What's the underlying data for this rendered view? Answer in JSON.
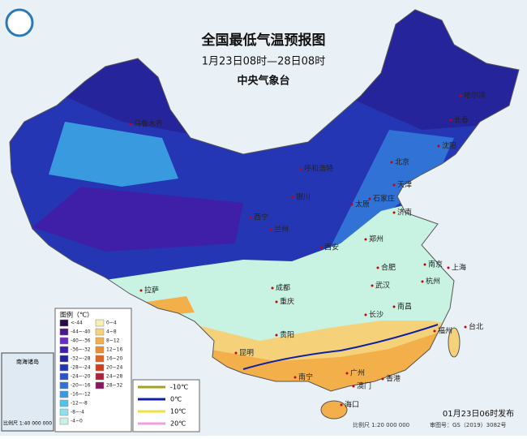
{
  "header": {
    "title": "全国最低气温预报图",
    "subtitle": "1月23日08时—28日08时",
    "issuer": "中央气象台"
  },
  "cities": [
    "哈尔滨",
    "长春",
    "沈阳",
    "乌鲁木齐",
    "呼和浩特",
    "北京",
    "天津",
    "石家庄",
    "太原",
    "银川",
    "西宁",
    "兰州",
    "济南",
    "郑州",
    "西安",
    "合肥",
    "南京",
    "上海",
    "成都",
    "武汉",
    "杭州",
    "拉萨",
    "重庆",
    "长沙",
    "南昌",
    "台北",
    "福州",
    "贵阳",
    "昆明",
    "南宁",
    "广州",
    "澳门",
    "香港",
    "海口"
  ],
  "legend": {
    "title": "图例（℃）",
    "items": [
      {
        "label": "<-44",
        "color": "#2a0a4a"
      },
      {
        "label": "-44~-40",
        "color": "#4b1a86"
      },
      {
        "label": "-40~-36",
        "color": "#6a2fc0"
      },
      {
        "label": "-36~-32",
        "color": "#3f1fa8"
      },
      {
        "label": "-32~-28",
        "color": "#26249a"
      },
      {
        "label": "-28~-24",
        "color": "#2436b4"
      },
      {
        "label": "-24~-20",
        "color": "#2c52c8"
      },
      {
        "label": "-20~-16",
        "color": "#3172d6"
      },
      {
        "label": "-16~-12",
        "color": "#3a9ae0"
      },
      {
        "label": "-12~-8",
        "color": "#52c2ea"
      },
      {
        "label": "-8~-4",
        "color": "#8fe0ee"
      },
      {
        "label": "-4~0",
        "color": "#c8f2e2"
      },
      {
        "label": "0~4",
        "color": "#f8efb0"
      },
      {
        "label": "4~8",
        "color": "#f5d27a"
      },
      {
        "label": "8~12",
        "color": "#f3b04a"
      },
      {
        "label": "12~16",
        "color": "#ee8c30"
      },
      {
        "label": "16~20",
        "color": "#e4621e"
      },
      {
        "label": "20~24",
        "color": "#d23c1a"
      },
      {
        "label": "24~28",
        "color": "#b01f3c"
      },
      {
        "label": "28~32",
        "color": "#8a1460"
      }
    ]
  },
  "isolines": [
    {
      "label": "-10℃",
      "color": "#a8a020"
    },
    {
      "label": "0℃",
      "color": "#1020a0"
    },
    {
      "label": "10℃",
      "color": "#f0e040"
    },
    {
      "label": "20℃",
      "color": "#f0a0e0"
    }
  ],
  "inset": {
    "title": "南海诸岛",
    "scale": "比例尺 1:40 000 000"
  },
  "footer": {
    "scale": "比例尺 1:20 000 000",
    "approval": "审图号：GS（2019）3082号",
    "issued": "01月23日06时发布"
  }
}
